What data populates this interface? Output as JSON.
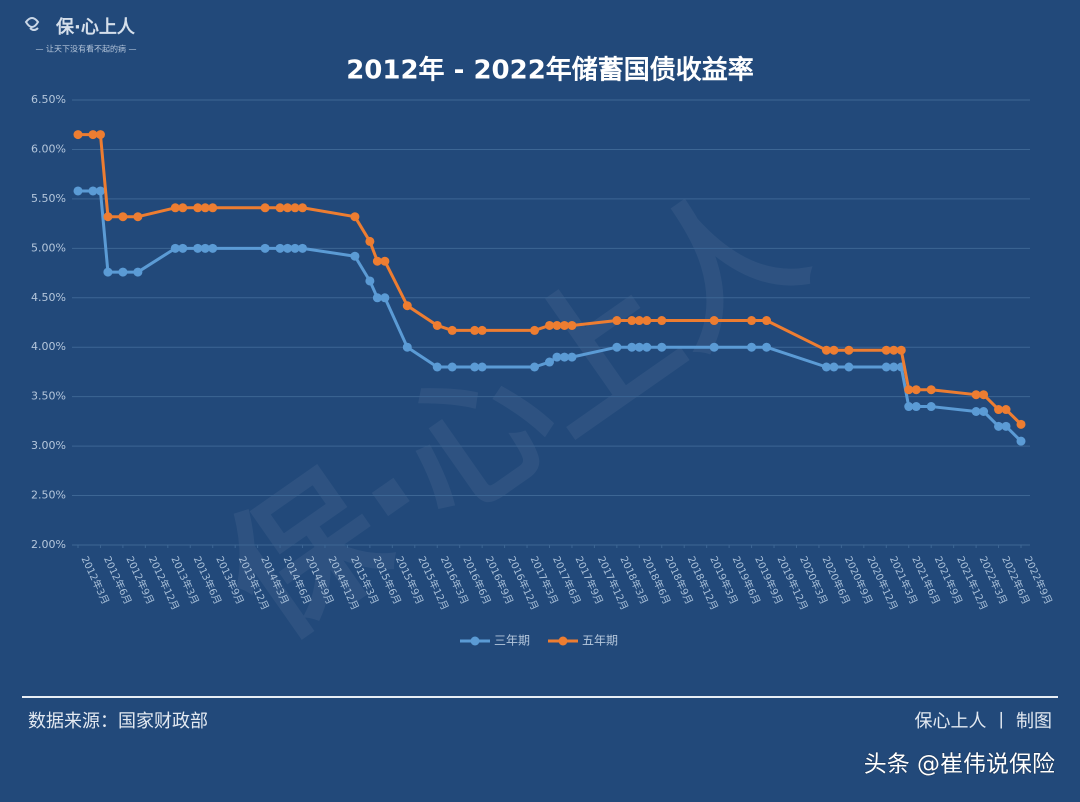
{
  "logo": {
    "name": "保·心上人",
    "tagline": "— 让天下没有看不起的病 —"
  },
  "watermark": "保·心上人",
  "chart_data": {
    "type": "line",
    "title": "2012年 - 2022年储蓄国债收益率",
    "x": [
      "2012-03",
      "2012-05",
      "2012-06",
      "2012-07",
      "2012-09",
      "2012-11",
      "2013-04",
      "2013-05",
      "2013-07",
      "2013-08",
      "2013-09",
      "2014-04",
      "2014-06",
      "2014-07",
      "2014-08",
      "2014-09",
      "2015-04",
      "2015-06",
      "2015-07",
      "2015-08",
      "2015-11",
      "2016-03",
      "2016-05",
      "2016-08",
      "2016-09",
      "2017-04",
      "2017-06",
      "2017-07",
      "2017-08",
      "2017-09",
      "2018-03",
      "2018-05",
      "2018-06",
      "2018-07",
      "2018-09",
      "2019-04",
      "2019-09",
      "2019-11",
      "2020-07",
      "2020-08",
      "2020-10",
      "2021-03",
      "2021-04",
      "2021-05",
      "2021-06",
      "2021-07",
      "2021-09",
      "2022-03",
      "2022-04",
      "2022-06",
      "2022-07",
      "2022-09"
    ],
    "series": [
      {
        "name": "三年期",
        "color": "#5b9bd5",
        "values": [
          5.58,
          5.58,
          5.58,
          4.76,
          4.76,
          4.76,
          5.0,
          5.0,
          5.0,
          5.0,
          5.0,
          5.0,
          5.0,
          5.0,
          5.0,
          5.0,
          4.92,
          4.67,
          4.5,
          4.5,
          4.0,
          3.8,
          3.8,
          3.8,
          3.8,
          3.8,
          3.85,
          3.9,
          3.9,
          3.9,
          4.0,
          4.0,
          4.0,
          4.0,
          4.0,
          4.0,
          4.0,
          4.0,
          3.8,
          3.8,
          3.8,
          3.8,
          3.8,
          3.8,
          3.4,
          3.4,
          3.4,
          3.35,
          3.35,
          3.2,
          3.2,
          3.05
        ]
      },
      {
        "name": "五年期",
        "color": "#ed7d31",
        "values": [
          6.15,
          6.15,
          6.15,
          5.32,
          5.32,
          5.32,
          5.41,
          5.41,
          5.41,
          5.41,
          5.41,
          5.41,
          5.41,
          5.41,
          5.41,
          5.41,
          5.32,
          5.07,
          4.87,
          4.87,
          4.42,
          4.22,
          4.17,
          4.17,
          4.17,
          4.17,
          4.22,
          4.22,
          4.22,
          4.22,
          4.27,
          4.27,
          4.27,
          4.27,
          4.27,
          4.27,
          4.27,
          4.27,
          3.97,
          3.97,
          3.97,
          3.97,
          3.97,
          3.97,
          3.57,
          3.57,
          3.57,
          3.52,
          3.52,
          3.37,
          3.37,
          3.22
        ]
      }
    ],
    "xlim": [
      "2012-03",
      "2022-09"
    ],
    "xticks": [
      {
        "value": "2012-03",
        "label": "2012年3月"
      },
      {
        "value": "2012-06",
        "label": "2012年6月"
      },
      {
        "value": "2012-09",
        "label": "2012年9月"
      },
      {
        "value": "2012-12",
        "label": "2012年12月"
      },
      {
        "value": "2013-03",
        "label": "2013年3月"
      },
      {
        "value": "2013-06",
        "label": "2013年6月"
      },
      {
        "value": "2013-09",
        "label": "2013年9月"
      },
      {
        "value": "2013-12",
        "label": "2013年12月"
      },
      {
        "value": "2014-03",
        "label": "2014年3月"
      },
      {
        "value": "2014-06",
        "label": "2014年6月"
      },
      {
        "value": "2014-09",
        "label": "2014年9月"
      },
      {
        "value": "2014-12",
        "label": "2014年12月"
      },
      {
        "value": "2015-03",
        "label": "2015年3月"
      },
      {
        "value": "2015-06",
        "label": "2015年6月"
      },
      {
        "value": "2015-09",
        "label": "2015年9月"
      },
      {
        "value": "2015-12",
        "label": "2015年12月"
      },
      {
        "value": "2016-03",
        "label": "2016年3月"
      },
      {
        "value": "2016-06",
        "label": "2016年6月"
      },
      {
        "value": "2016-09",
        "label": "2016年9月"
      },
      {
        "value": "2016-12",
        "label": "2016年12月"
      },
      {
        "value": "2017-03",
        "label": "2017年3月"
      },
      {
        "value": "2017-06",
        "label": "2017年6月"
      },
      {
        "value": "2017-09",
        "label": "2017年9月"
      },
      {
        "value": "2017-12",
        "label": "2017年12月"
      },
      {
        "value": "2018-03",
        "label": "2018年3月"
      },
      {
        "value": "2018-06",
        "label": "2018年6月"
      },
      {
        "value": "2018-09",
        "label": "2018年9月"
      },
      {
        "value": "2018-12",
        "label": "2018年12月"
      },
      {
        "value": "2019-03",
        "label": "2019年3月"
      },
      {
        "value": "2019-06",
        "label": "2019年6月"
      },
      {
        "value": "2019-09",
        "label": "2019年9月"
      },
      {
        "value": "2019-12",
        "label": "2019年12月"
      },
      {
        "value": "2020-03",
        "label": "2020年3月"
      },
      {
        "value": "2020-06",
        "label": "2020年6月"
      },
      {
        "value": "2020-09",
        "label": "2020年9月"
      },
      {
        "value": "2020-12",
        "label": "2020年12月"
      },
      {
        "value": "2021-03",
        "label": "2021年3月"
      },
      {
        "value": "2021-06",
        "label": "2021年6月"
      },
      {
        "value": "2021-09",
        "label": "2021年9月"
      },
      {
        "value": "2021-12",
        "label": "2021年12月"
      },
      {
        "value": "2022-03",
        "label": "2022年3月"
      },
      {
        "value": "2022-06",
        "label": "2022年6月"
      },
      {
        "value": "2022-09",
        "label": "2022年9月"
      }
    ],
    "ylim": [
      2.0,
      6.5
    ],
    "yticks": [
      {
        "value": 2.0,
        "label": "2.00%"
      },
      {
        "value": 2.5,
        "label": "2.50%"
      },
      {
        "value": 3.0,
        "label": "3.00%"
      },
      {
        "value": 3.5,
        "label": "3.50%"
      },
      {
        "value": 4.0,
        "label": "4.00%"
      },
      {
        "value": 4.5,
        "label": "4.50%"
      },
      {
        "value": 5.0,
        "label": "5.00%"
      },
      {
        "value": 5.5,
        "label": "5.50%"
      },
      {
        "value": 6.0,
        "label": "6.00%"
      },
      {
        "value": 6.5,
        "label": "6.50%"
      }
    ],
    "grid": true,
    "legend": "bottom"
  },
  "footer": {
    "source": "数据来源：国家财政部",
    "credit": "保心上人 丨 制图",
    "account": "头条 @崔伟说保险"
  }
}
